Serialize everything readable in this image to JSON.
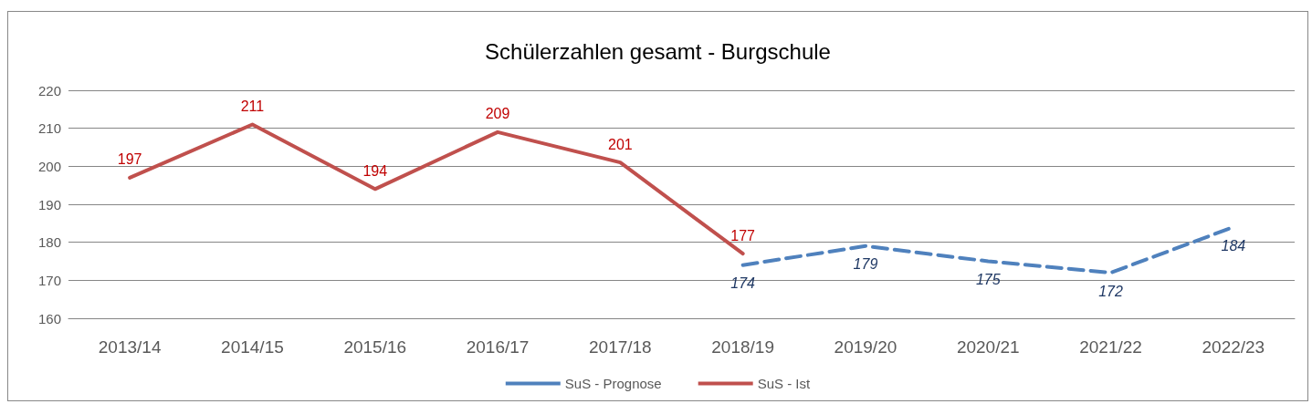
{
  "chart_data": {
    "type": "line",
    "title": "Schülerzahlen gesamt - Burgschule",
    "categories": [
      "2013/14",
      "2014/15",
      "2015/16",
      "2016/17",
      "2017/18",
      "2018/19",
      "2019/20",
      "2020/21",
      "2021/22",
      "2022/23"
    ],
    "series": [
      {
        "name": "SuS - Prognose",
        "color": "#4f81bd",
        "line_style": "dashed",
        "values": [
          null,
          null,
          null,
          null,
          null,
          174,
          179,
          175,
          172,
          184
        ]
      },
      {
        "name": "SuS - Ist",
        "color": "#c0504d",
        "line_style": "solid",
        "values": [
          197,
          211,
          194,
          209,
          201,
          177,
          null,
          null,
          null,
          null
        ]
      }
    ],
    "ylim": [
      160,
      220
    ],
    "yticks": [
      160,
      170,
      180,
      190,
      200,
      210,
      220
    ],
    "grid": "y",
    "legend": "bottom",
    "marker": "none",
    "data_labels": true
  }
}
